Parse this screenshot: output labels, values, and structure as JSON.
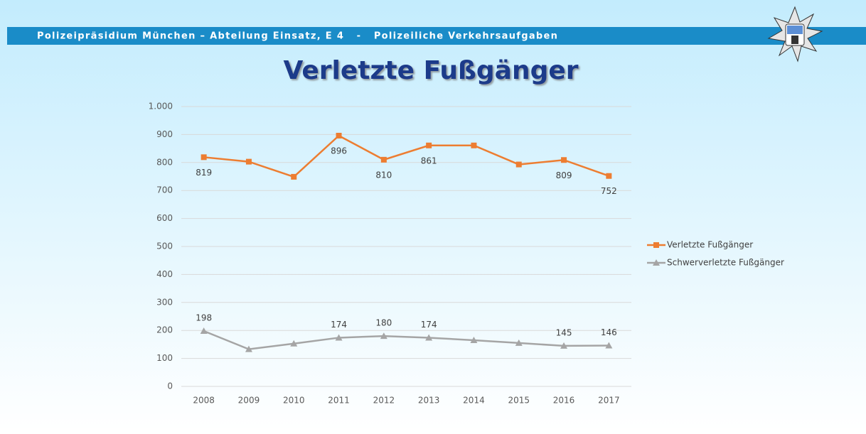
{
  "header": {
    "text": "Polizeipräsidium München – Abteilung Einsatz, E 4   -   Polizeiliche Verkehrsaufgaben"
  },
  "chart_data": {
    "type": "line",
    "title": "Verletzte Fußgänger",
    "categories": [
      "2008",
      "2009",
      "2010",
      "2011",
      "2012",
      "2013",
      "2014",
      "2015",
      "2016",
      "2017"
    ],
    "series": [
      {
        "name": "Verletzte Fußgänger",
        "color": "#ed7d31",
        "marker": "square",
        "values": [
          819,
          803,
          749,
          896,
          810,
          861,
          861,
          793,
          809,
          752
        ],
        "value_labels": [
          "819",
          null,
          null,
          "896",
          "810",
          "861",
          null,
          null,
          "809",
          "752"
        ]
      },
      {
        "name": "Schwerverletzte Fußgänger",
        "color": "#a5a5a5",
        "marker": "triangle",
        "values": [
          198,
          133,
          153,
          174,
          180,
          174,
          165,
          155,
          145,
          146
        ],
        "value_labels": [
          "198",
          null,
          null,
          "174",
          "180",
          "174",
          null,
          null,
          "145",
          "146"
        ]
      }
    ],
    "ylim": [
      0,
      1000
    ],
    "yticks": [
      0,
      100,
      200,
      300,
      400,
      500,
      600,
      700,
      800,
      900,
      {
        "value": 1000,
        "label": "1.000"
      }
    ],
    "grid": true,
    "legend": "right"
  }
}
